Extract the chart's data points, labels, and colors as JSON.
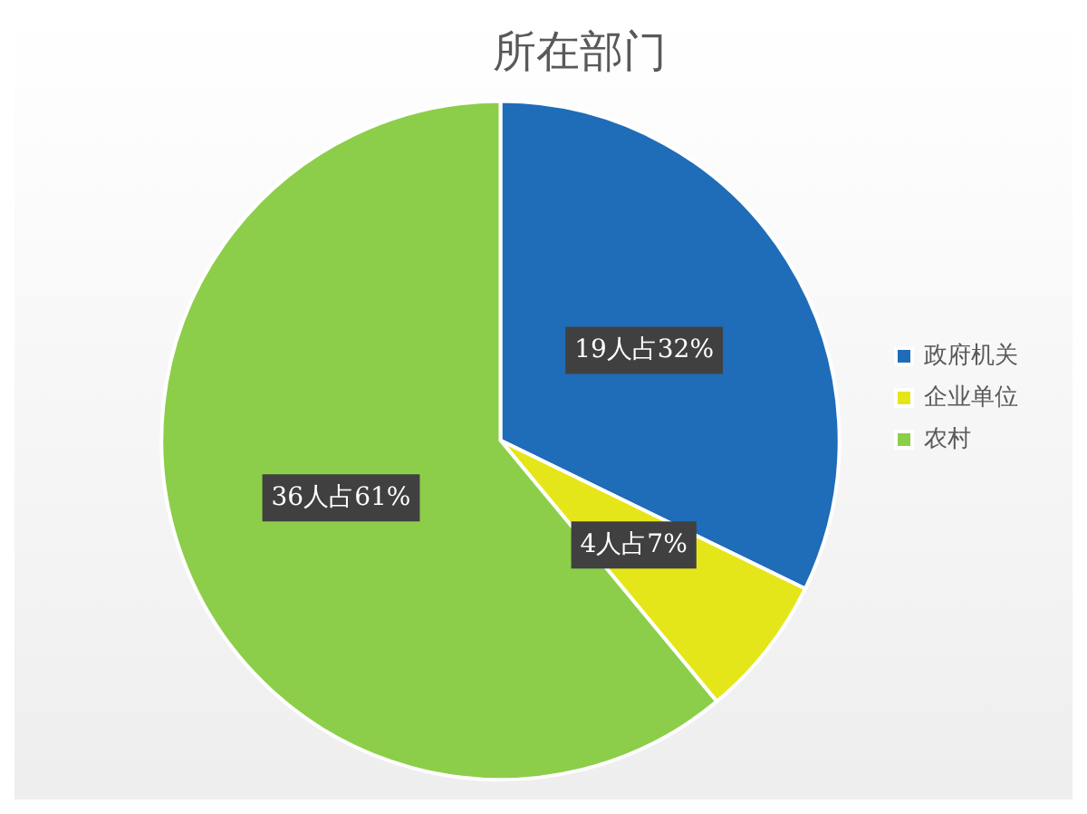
{
  "chart_data": {
    "type": "pie",
    "title": "所在部门",
    "categories": [
      "政府机关",
      "企业单位",
      "农村"
    ],
    "values": [
      19,
      4,
      36
    ],
    "colors": [
      "#1f6cb8",
      "#e5e619",
      "#8cce4a"
    ],
    "value_labels": [
      "19人占32%",
      "4人占7%",
      "36人占61%"
    ],
    "legend": "right"
  }
}
